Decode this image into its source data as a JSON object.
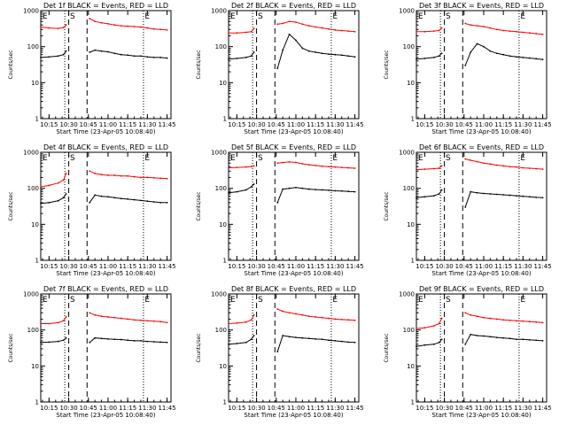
{
  "figure": {
    "xlabel": "Start Time (23-Apr-05 10:08:40)",
    "ylabel": "Counts/sec",
    "xticks": [
      "10:15",
      "10:30",
      "10:45",
      "11:00",
      "11:15",
      "11:30",
      "11:45"
    ],
    "yticks": [
      "1",
      "10",
      "100",
      "1000"
    ],
    "colors": {
      "events": "#000000",
      "lld": "#ff0000"
    },
    "markers": {
      "start": "E",
      "sun": "S",
      "end": "E"
    }
  },
  "chart_data": [
    {
      "type": "line",
      "title": "Det 1f BLACK = Events, RED = LLD",
      "xlim": [
        "10:08:40",
        "11:48"
      ],
      "ylim": [
        1,
        1000
      ],
      "yscale": "log",
      "x": [
        "10:08:40",
        "10:15",
        "10:22",
        "10:26",
        "10:28",
        "10:30",
        "10:44",
        "10:46",
        "10:50",
        "10:55",
        "11:00",
        "11:05",
        "11:10",
        "11:15",
        "11:20",
        "11:25",
        "11:30",
        "11:35",
        "11:40",
        "11:45"
      ],
      "series": [
        {
          "name": "Events",
          "color": "#000000",
          "values": [
            50,
            52,
            55,
            60,
            75,
            null,
            null,
            70,
            80,
            75,
            72,
            65,
            60,
            58,
            55,
            55,
            52,
            50,
            50,
            48
          ]
        },
        {
          "name": "LLD",
          "color": "#ff0000",
          "values": [
            350,
            330,
            320,
            340,
            400,
            null,
            null,
            600,
            500,
            460,
            430,
            400,
            380,
            370,
            360,
            350,
            330,
            310,
            300,
            290
          ]
        }
      ]
    },
    {
      "type": "line",
      "title": "Det 2f BLACK = Events, RED = LLD",
      "xlim": [
        "10:08:40",
        "11:48"
      ],
      "ylim": [
        1,
        1000
      ],
      "yscale": "log",
      "x": [
        "10:08:40",
        "10:15",
        "10:22",
        "10:26",
        "10:28",
        "10:30",
        "10:44",
        "10:46",
        "10:50",
        "10:55",
        "11:00",
        "11:05",
        "11:10",
        "11:15",
        "11:20",
        "11:25",
        "11:30",
        "11:35",
        "11:40",
        "11:45"
      ],
      "series": [
        {
          "name": "Events",
          "color": "#000000",
          "values": [
            45,
            47,
            50,
            55,
            70,
            null,
            null,
            25,
            80,
            220,
            150,
            90,
            75,
            70,
            65,
            62,
            60,
            58,
            55,
            52
          ]
        },
        {
          "name": "LLD",
          "color": "#ff0000",
          "values": [
            240,
            240,
            250,
            260,
            320,
            null,
            null,
            420,
            440,
            500,
            480,
            420,
            380,
            350,
            330,
            310,
            290,
            280,
            270,
            260
          ]
        }
      ]
    },
    {
      "type": "line",
      "title": "Det 3f BLACK = Events, RED = LLD",
      "xlim": [
        "10:08:40",
        "11:48"
      ],
      "ylim": [
        1,
        1000
      ],
      "yscale": "log",
      "x": [
        "10:08:40",
        "10:15",
        "10:22",
        "10:26",
        "10:28",
        "10:30",
        "10:44",
        "10:46",
        "10:50",
        "10:55",
        "11:00",
        "11:05",
        "11:10",
        "11:15",
        "11:20",
        "11:25",
        "11:30",
        "11:35",
        "11:40",
        "11:45"
      ],
      "series": [
        {
          "name": "Events",
          "color": "#000000",
          "values": [
            45,
            47,
            50,
            55,
            65,
            null,
            null,
            30,
            70,
            120,
            100,
            75,
            65,
            60,
            55,
            52,
            50,
            48,
            46,
            44
          ]
        },
        {
          "name": "LLD",
          "color": "#ff0000",
          "values": [
            260,
            260,
            270,
            280,
            330,
            null,
            null,
            440,
            400,
            380,
            360,
            330,
            300,
            280,
            270,
            260,
            250,
            240,
            230,
            220
          ]
        }
      ]
    },
    {
      "type": "line",
      "title": "Det 4f BLACK = Events, RED = LLD",
      "xlim": [
        "10:08:40",
        "11:48"
      ],
      "ylim": [
        1,
        1000
      ],
      "yscale": "log",
      "x": [
        "10:08:40",
        "10:15",
        "10:22",
        "10:26",
        "10:28",
        "10:30",
        "10:44",
        "10:46",
        "10:50",
        "10:55",
        "11:00",
        "11:05",
        "11:10",
        "11:15",
        "11:20",
        "11:25",
        "11:30",
        "11:35",
        "11:40",
        "11:45"
      ],
      "series": [
        {
          "name": "Events",
          "color": "#000000",
          "values": [
            38,
            40,
            45,
            55,
            70,
            null,
            null,
            40,
            65,
            60,
            58,
            55,
            52,
            50,
            48,
            46,
            44,
            42,
            40,
            40
          ]
        },
        {
          "name": "LLD",
          "color": "#ff0000",
          "values": [
            110,
            120,
            140,
            170,
            260,
            null,
            null,
            300,
            260,
            240,
            230,
            230,
            220,
            220,
            210,
            200,
            200,
            195,
            190,
            185
          ]
        }
      ]
    },
    {
      "type": "line",
      "title": "Det 5f BLACK = Events, RED = LLD",
      "xlim": [
        "10:08:40",
        "11:48"
      ],
      "ylim": [
        1,
        1000
      ],
      "yscale": "log",
      "x": [
        "10:08:40",
        "10:15",
        "10:22",
        "10:26",
        "10:28",
        "10:30",
        "10:44",
        "10:46",
        "10:50",
        "10:55",
        "11:00",
        "11:05",
        "11:10",
        "11:15",
        "11:20",
        "11:25",
        "11:30",
        "11:35",
        "11:40",
        "11:45"
      ],
      "series": [
        {
          "name": "Events",
          "color": "#000000",
          "values": [
            75,
            80,
            90,
            110,
            130,
            null,
            null,
            40,
            95,
            100,
            105,
            100,
            95,
            92,
            90,
            88,
            85,
            84,
            82,
            80
          ]
        },
        {
          "name": "LLD",
          "color": "#ff0000",
          "values": [
            370,
            380,
            390,
            400,
            420,
            null,
            null,
            500,
            520,
            540,
            520,
            480,
            450,
            430,
            410,
            400,
            390,
            380,
            370,
            360
          ]
        }
      ]
    },
    {
      "type": "line",
      "title": "Det 6f BLACK = Events, RED = LLD",
      "xlim": [
        "10:08:40",
        "11:48"
      ],
      "ylim": [
        1,
        1000
      ],
      "yscale": "log",
      "x": [
        "10:08:40",
        "10:15",
        "10:22",
        "10:26",
        "10:28",
        "10:30",
        "10:44",
        "10:46",
        "10:50",
        "10:55",
        "11:00",
        "11:05",
        "11:10",
        "11:15",
        "11:20",
        "11:25",
        "11:30",
        "11:35",
        "11:40",
        "11:45"
      ],
      "series": [
        {
          "name": "Events",
          "color": "#000000",
          "values": [
            55,
            58,
            62,
            70,
            90,
            null,
            null,
            30,
            80,
            75,
            72,
            70,
            68,
            66,
            64,
            62,
            60,
            58,
            56,
            55
          ]
        },
        {
          "name": "LLD",
          "color": "#ff0000",
          "values": [
            330,
            340,
            350,
            360,
            420,
            null,
            null,
            650,
            600,
            550,
            500,
            470,
            440,
            420,
            400,
            390,
            370,
            360,
            350,
            340
          ]
        }
      ]
    },
    {
      "type": "line",
      "title": "Det 7f BLACK = Events, RED = LLD",
      "xlim": [
        "10:08:40",
        "11:48"
      ],
      "ylim": [
        1,
        1000
      ],
      "yscale": "log",
      "x": [
        "10:08:40",
        "10:15",
        "10:22",
        "10:26",
        "10:28",
        "10:30",
        "10:44",
        "10:46",
        "10:50",
        "10:55",
        "11:00",
        "11:05",
        "11:10",
        "11:15",
        "11:20",
        "11:25",
        "11:30",
        "11:35",
        "11:40",
        "11:45"
      ],
      "series": [
        {
          "name": "Events",
          "color": "#000000",
          "values": [
            45,
            46,
            48,
            52,
            60,
            null,
            null,
            45,
            60,
            58,
            56,
            55,
            54,
            52,
            50,
            50,
            48,
            47,
            46,
            45
          ]
        },
        {
          "name": "LLD",
          "color": "#ff0000",
          "values": [
            150,
            150,
            160,
            180,
            230,
            null,
            null,
            300,
            260,
            240,
            230,
            220,
            210,
            200,
            190,
            185,
            180,
            175,
            170,
            160
          ]
        }
      ]
    },
    {
      "type": "line",
      "title": "Det 8f BLACK = Events, RED = LLD",
      "xlim": [
        "10:08:40",
        "11:48"
      ],
      "ylim": [
        1,
        1000
      ],
      "yscale": "log",
      "x": [
        "10:08:40",
        "10:15",
        "10:22",
        "10:26",
        "10:28",
        "10:30",
        "10:44",
        "10:46",
        "10:50",
        "10:55",
        "11:00",
        "11:05",
        "11:10",
        "11:15",
        "11:20",
        "11:25",
        "11:30",
        "11:35",
        "11:40",
        "11:45"
      ],
      "series": [
        {
          "name": "Events",
          "color": "#000000",
          "values": [
            40,
            42,
            45,
            55,
            70,
            null,
            null,
            25,
            70,
            65,
            62,
            60,
            58,
            56,
            55,
            52,
            50,
            48,
            46,
            45
          ]
        },
        {
          "name": "LLD",
          "color": "#ff0000",
          "values": [
            150,
            155,
            165,
            190,
            260,
            null,
            null,
            380,
            330,
            300,
            280,
            260,
            240,
            230,
            220,
            210,
            200,
            195,
            190,
            185
          ]
        }
      ]
    },
    {
      "type": "line",
      "title": "Det 9f BLACK = Events, RED = LLD",
      "xlim": [
        "10:08:40",
        "11:48"
      ],
      "ylim": [
        1,
        1000
      ],
      "yscale": "log",
      "x": [
        "10:08:40",
        "10:15",
        "10:22",
        "10:26",
        "10:28",
        "10:30",
        "10:44",
        "10:46",
        "10:50",
        "10:55",
        "11:00",
        "11:05",
        "11:10",
        "11:15",
        "11:20",
        "11:25",
        "11:30",
        "11:35",
        "11:40",
        "11:45"
      ],
      "series": [
        {
          "name": "Events",
          "color": "#000000",
          "values": [
            35,
            38,
            40,
            45,
            55,
            null,
            null,
            40,
            75,
            70,
            68,
            65,
            62,
            60,
            58,
            55,
            55,
            53,
            52,
            50
          ]
        },
        {
          "name": "LLD",
          "color": "#ff0000",
          "values": [
            110,
            115,
            130,
            150,
            210,
            null,
            null,
            300,
            260,
            240,
            220,
            210,
            200,
            190,
            185,
            180,
            175,
            170,
            165,
            160
          ]
        }
      ]
    }
  ]
}
